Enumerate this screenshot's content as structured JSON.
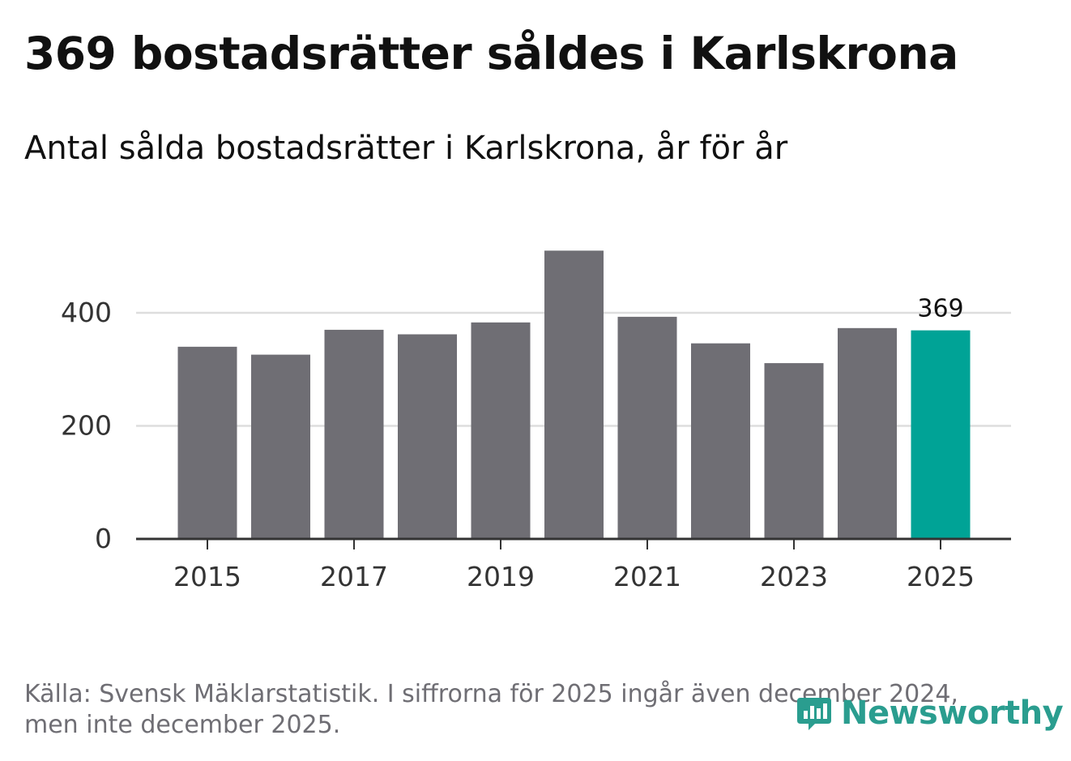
{
  "header": {
    "title": "369 bostadsrätter såldes i Karlskrona",
    "subtitle": "Antal sålda bostadsrätter i Karlskrona, år för år"
  },
  "footer": {
    "source_line1": "Källa: Svensk Mäklarstatistik. I siffrorna för 2025 ingår även december 2024,",
    "source_line2": "men inte december 2025."
  },
  "logo": {
    "text": "Newsworthy",
    "icon": "newsworthy-logo-icon"
  },
  "colors": {
    "bar": "#6f6e74",
    "highlight": "#00a396",
    "grid": "#dddddd",
    "axis": "#333333",
    "tick_text": "#333333",
    "logo": "#2a9d8f"
  },
  "chart_data": {
    "type": "bar",
    "title": "369 bostadsrätter såldes i Karlskrona",
    "subtitle": "Antal sålda bostadsrätter i Karlskrona, år för år",
    "xlabel": "",
    "ylabel": "",
    "categories": [
      "2015",
      "2016",
      "2017",
      "2018",
      "2019",
      "2020",
      "2021",
      "2022",
      "2023",
      "2024",
      "2025"
    ],
    "values": [
      340,
      326,
      370,
      362,
      383,
      510,
      393,
      346,
      311,
      373,
      369
    ],
    "highlight_index": 10,
    "data_labels": [
      {
        "category": "2025",
        "text": "369"
      }
    ],
    "x_ticks": [
      "2015",
      "2017",
      "2019",
      "2021",
      "2023",
      "2025"
    ],
    "y_ticks": [
      "0",
      "200",
      "400"
    ],
    "ylim": [
      0,
      520
    ],
    "grid": true
  }
}
